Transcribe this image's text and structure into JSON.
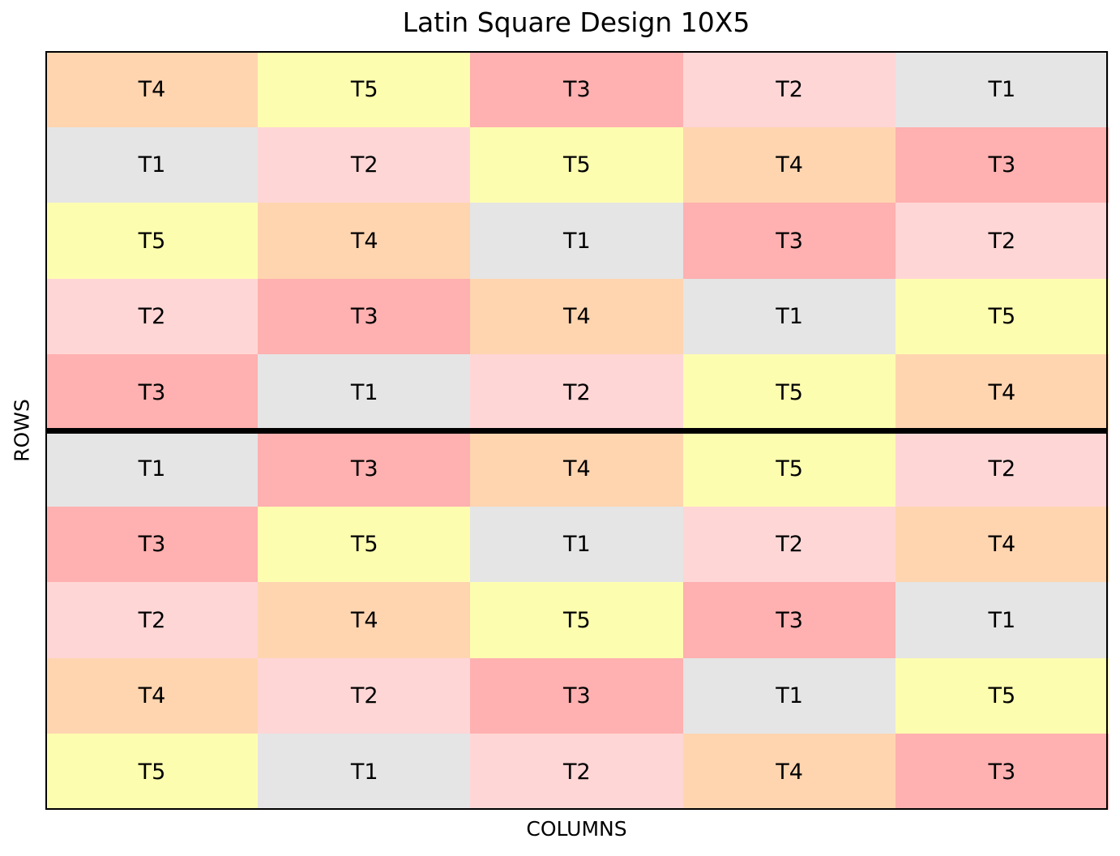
{
  "chart_data": {
    "type": "heatmap",
    "title": "Latin Square Design 10X5",
    "xlabel": "COLUMNS",
    "ylabel": "ROWS",
    "n_rows": 10,
    "n_cols": 5,
    "cells": [
      [
        "T4",
        "T5",
        "T3",
        "T2",
        "T1"
      ],
      [
        "T1",
        "T2",
        "T5",
        "T4",
        "T3"
      ],
      [
        "T5",
        "T4",
        "T1",
        "T3",
        "T2"
      ],
      [
        "T2",
        "T3",
        "T4",
        "T1",
        "T5"
      ],
      [
        "T3",
        "T1",
        "T2",
        "T5",
        "T4"
      ],
      [
        "T1",
        "T3",
        "T4",
        "T5",
        "T2"
      ],
      [
        "T3",
        "T5",
        "T1",
        "T2",
        "T4"
      ],
      [
        "T2",
        "T4",
        "T5",
        "T3",
        "T1"
      ],
      [
        "T4",
        "T2",
        "T3",
        "T1",
        "T5"
      ],
      [
        "T5",
        "T1",
        "T2",
        "T4",
        "T3"
      ]
    ],
    "treatment_colors": {
      "T1": "#e5e5e5",
      "T2": "#ffd6d6",
      "T3": "#ffb0b0",
      "T4": "#ffd5b0",
      "T5": "#fdfdb0"
    },
    "square_divider_after_row": 5
  }
}
